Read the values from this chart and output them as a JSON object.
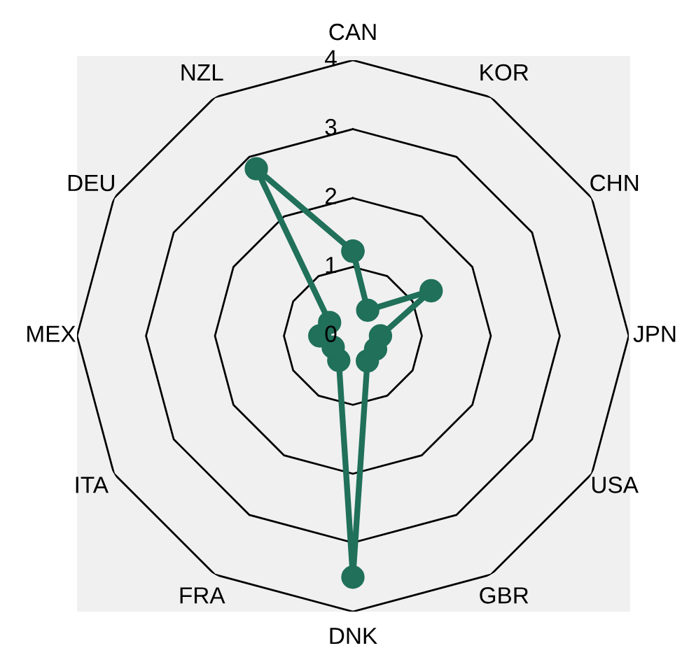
{
  "chart_data": {
    "type": "radar",
    "categories": [
      "CAN",
      "KOR",
      "CHN",
      "JPN",
      "USA",
      "GBR",
      "DNK",
      "FRA",
      "ITA",
      "MEX",
      "DEU",
      "NZL"
    ],
    "series": [
      {
        "color": "#20705a",
        "values": [
          1.23,
          0.43,
          1.31,
          0.4,
          0.38,
          0.42,
          3.5,
          0.41,
          0.33,
          0.48,
          0.39,
          2.8
        ]
      }
    ],
    "ylim": [
      0,
      4
    ],
    "yticks": [
      0,
      1,
      2,
      3,
      4
    ],
    "grid": true,
    "marker": "circle",
    "line_style": "solid"
  }
}
